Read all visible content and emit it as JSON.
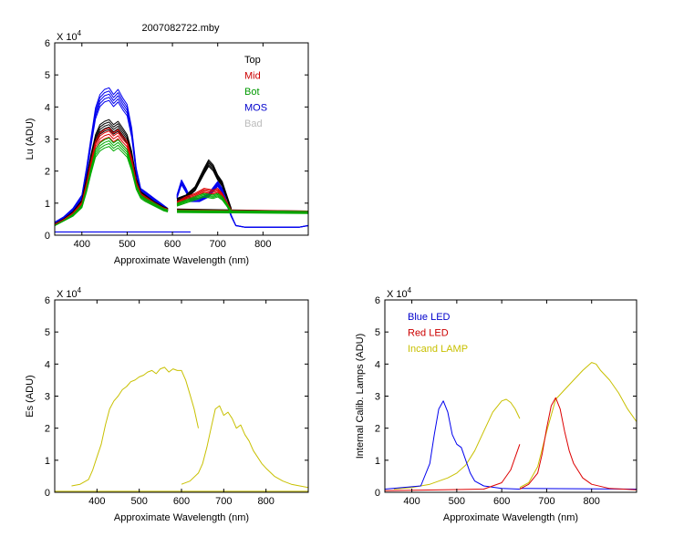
{
  "figure_title": "2007082722.mby",
  "chart_data": [
    {
      "id": "lu",
      "type": "line",
      "xlabel": "Approximate Wavelength (nm)",
      "ylabel": "Lu (ADU)",
      "xlim": [
        340,
        900
      ],
      "ylim": [
        0,
        6
      ],
      "y_multiplier": "X 10",
      "y_multiplier_exp": "4",
      "xticks": [
        400,
        500,
        600,
        700,
        800
      ],
      "yticks": [
        0,
        1,
        2,
        3,
        4,
        5,
        6
      ],
      "grid": false,
      "legend_position": "top-right",
      "legend": [
        {
          "name": "Top",
          "color": "#000000"
        },
        {
          "name": "Mid",
          "color": "#cc0000"
        },
        {
          "name": "Bot",
          "color": "#009900"
        },
        {
          "name": "MOS",
          "color": "#0000cc"
        },
        {
          "name": "Bad",
          "color": "#bbbbbb"
        }
      ],
      "series": [
        {
          "name": "MOS",
          "color": "#0000ee",
          "repeats": 5,
          "segments": [
            {
              "x": [
                340,
                360,
                380,
                400,
                410,
                420,
                430,
                440,
                450,
                460,
                470,
                480,
                490,
                500,
                510,
                520,
                530,
                540,
                560,
                580,
                590
              ],
              "y": [
                0.4,
                0.55,
                0.8,
                1.2,
                2.0,
                2.9,
                3.8,
                4.2,
                4.35,
                4.4,
                4.2,
                4.35,
                4.1,
                3.9,
                3.2,
                2.0,
                1.4,
                1.3,
                1.1,
                0.9,
                0.8
              ]
            },
            {
              "x": [
                610,
                620,
                630,
                640,
                660,
                680,
                700,
                710,
                720,
                730,
                740,
                760,
                800,
                840,
                880,
                900
              ],
              "y": [
                1.2,
                1.65,
                1.4,
                1.1,
                1.1,
                1.25,
                1.6,
                1.4,
                1.0,
                0.6,
                0.3,
                0.25,
                0.25,
                0.25,
                0.25,
                0.3
              ]
            },
            {
              "x": [
                340,
                640
              ],
              "y": [
                0.1,
                0.1
              ]
            }
          ]
        },
        {
          "name": "Top",
          "color": "#000000",
          "repeats": 5,
          "segments": [
            {
              "x": [
                340,
                360,
                380,
                400,
                410,
                420,
                430,
                440,
                450,
                460,
                470,
                480,
                490,
                500,
                510,
                520,
                530,
                540,
                560,
                580,
                590
              ],
              "y": [
                0.35,
                0.5,
                0.7,
                1.05,
                1.7,
                2.4,
                3.0,
                3.3,
                3.4,
                3.45,
                3.3,
                3.4,
                3.2,
                3.0,
                2.5,
                1.7,
                1.3,
                1.2,
                1.0,
                0.85,
                0.8
              ]
            },
            {
              "x": [
                610,
                630,
                650,
                670,
                680,
                690,
                700,
                710,
                720,
                730
              ],
              "y": [
                1.1,
                1.2,
                1.45,
                2.0,
                2.25,
                2.1,
                1.8,
                1.6,
                1.2,
                0.8
              ]
            },
            {
              "x": [
                610,
                900
              ],
              "y": [
                0.78,
                0.72
              ]
            }
          ]
        },
        {
          "name": "Mid",
          "color": "#dd0000",
          "repeats": 4,
          "segments": [
            {
              "x": [
                340,
                360,
                380,
                400,
                410,
                420,
                430,
                440,
                450,
                460,
                470,
                480,
                490,
                500,
                510,
                520,
                530,
                540,
                560,
                580,
                590
              ],
              "y": [
                0.33,
                0.48,
                0.66,
                0.98,
                1.55,
                2.2,
                2.8,
                3.05,
                3.15,
                3.2,
                3.05,
                3.15,
                2.95,
                2.8,
                2.3,
                1.6,
                1.25,
                1.15,
                0.97,
                0.82,
                0.78
              ]
            },
            {
              "x": [
                610,
                630,
                650,
                670,
                690,
                700,
                710,
                720,
                730
              ],
              "y": [
                1.0,
                1.15,
                1.25,
                1.4,
                1.35,
                1.4,
                1.25,
                1.0,
                0.75
              ]
            },
            {
              "x": [
                610,
                900
              ],
              "y": [
                0.76,
                0.72
              ]
            }
          ]
        },
        {
          "name": "Bot",
          "color": "#00aa00",
          "repeats": 4,
          "segments": [
            {
              "x": [
                340,
                360,
                380,
                400,
                410,
                420,
                430,
                440,
                450,
                460,
                470,
                480,
                490,
                500,
                510,
                520,
                530,
                540,
                560,
                580,
                590
              ],
              "y": [
                0.3,
                0.45,
                0.62,
                0.9,
                1.4,
                2.0,
                2.55,
                2.75,
                2.85,
                2.9,
                2.75,
                2.85,
                2.7,
                2.55,
                2.1,
                1.5,
                1.2,
                1.1,
                0.95,
                0.8,
                0.76
              ]
            },
            {
              "x": [
                610,
                630,
                650,
                670,
                690,
                700,
                710,
                720,
                730
              ],
              "y": [
                0.95,
                1.05,
                1.15,
                1.25,
                1.2,
                1.25,
                1.15,
                0.95,
                0.72
              ]
            },
            {
              "x": [
                610,
                900
              ],
              "y": [
                0.74,
                0.71
              ]
            }
          ]
        }
      ]
    },
    {
      "id": "es",
      "type": "line",
      "xlabel": "Approximate Wavelength (nm)",
      "ylabel": "Es (ADU)",
      "xlim": [
        300,
        900
      ],
      "ylim": [
        0,
        6
      ],
      "y_multiplier": "X 10",
      "y_multiplier_exp": "4",
      "xticks": [
        400,
        500,
        600,
        700,
        800
      ],
      "yticks": [
        0,
        1,
        2,
        3,
        4,
        5,
        6
      ],
      "grid": false,
      "series": [
        {
          "name": "",
          "color": "#c8c000",
          "repeats": 1,
          "segments": [
            {
              "x": [
                340,
                360,
                380,
                390,
                400,
                410,
                420,
                430,
                440,
                450,
                460,
                470,
                480,
                490,
                500,
                510,
                520,
                530,
                540,
                550,
                560,
                570,
                580,
                590,
                600,
                610,
                620,
                630,
                640
              ],
              "y": [
                0.2,
                0.25,
                0.4,
                0.7,
                1.1,
                1.5,
                2.1,
                2.6,
                2.85,
                3.0,
                3.2,
                3.3,
                3.45,
                3.5,
                3.6,
                3.65,
                3.75,
                3.8,
                3.7,
                3.85,
                3.9,
                3.75,
                3.85,
                3.8,
                3.8,
                3.5,
                3.05,
                2.6,
                2.0
              ]
            },
            {
              "x": [
                600,
                620,
                640,
                650,
                660,
                670,
                680,
                690,
                700,
                710,
                720,
                730,
                740,
                750,
                760,
                770,
                780,
                790,
                800,
                820,
                840,
                860,
                880,
                900
              ],
              "y": [
                0.25,
                0.35,
                0.6,
                0.9,
                1.4,
                2.0,
                2.6,
                2.7,
                2.4,
                2.5,
                2.3,
                2.0,
                2.1,
                1.8,
                1.6,
                1.3,
                1.1,
                0.9,
                0.75,
                0.5,
                0.35,
                0.25,
                0.2,
                0.15
              ]
            },
            {
              "x": [
                300,
                900
              ],
              "y": [
                0.03,
                0.03
              ]
            }
          ]
        }
      ]
    },
    {
      "id": "lamps",
      "type": "line",
      "xlabel": "Approximate Wavelength (nm)",
      "ylabel": "Internal Calib. Lamps (ADU)",
      "xlim": [
        340,
        900
      ],
      "ylim": [
        0,
        6
      ],
      "y_multiplier": "X 10",
      "y_multiplier_exp": "4",
      "xticks": [
        400,
        500,
        600,
        700,
        800
      ],
      "yticks": [
        0,
        1,
        2,
        3,
        4,
        5,
        6
      ],
      "grid": false,
      "legend_position": "top-left",
      "legend": [
        {
          "name": "Blue LED",
          "color": "#0000cc"
        },
        {
          "name": "Red LED",
          "color": "#cc0000"
        },
        {
          "name": "Incand LAMP",
          "color": "#c8c000"
        }
      ],
      "series": [
        {
          "name": "Incand LAMP",
          "color": "#c8c000",
          "repeats": 1,
          "segments": [
            {
              "x": [
                360,
                400,
                440,
                480,
                500,
                520,
                540,
                560,
                580,
                600,
                610,
                620,
                630,
                640
              ],
              "y": [
                0.1,
                0.15,
                0.25,
                0.45,
                0.6,
                0.85,
                1.3,
                1.9,
                2.5,
                2.85,
                2.9,
                2.8,
                2.6,
                2.3
              ]
            },
            {
              "x": [
                640,
                660,
                680,
                700,
                720,
                740,
                760,
                780,
                800,
                810,
                820,
                840,
                860,
                880,
                900
              ],
              "y": [
                0.15,
                0.3,
                0.8,
                1.9,
                2.9,
                3.2,
                3.5,
                3.8,
                4.05,
                4.0,
                3.8,
                3.5,
                3.1,
                2.6,
                2.2
              ]
            }
          ]
        },
        {
          "name": "Blue LED",
          "color": "#0000ee",
          "repeats": 1,
          "segments": [
            {
              "x": [
                340,
                420,
                440,
                450,
                460,
                470,
                480,
                490,
                500,
                510,
                520,
                530,
                540,
                560,
                600,
                640
              ],
              "y": [
                0.1,
                0.2,
                0.9,
                1.8,
                2.6,
                2.85,
                2.5,
                1.8,
                1.5,
                1.4,
                1.0,
                0.6,
                0.35,
                0.2,
                0.12,
                0.1
              ]
            },
            {
              "x": [
                640,
                900
              ],
              "y": [
                0.12,
                0.1
              ]
            }
          ]
        },
        {
          "name": "Red LED",
          "color": "#dd0000",
          "repeats": 1,
          "segments": [
            {
              "x": [
                340,
                560,
                600,
                620,
                640
              ],
              "y": [
                0.05,
                0.1,
                0.3,
                0.7,
                1.5
              ]
            },
            {
              "x": [
                640,
                660,
                680,
                690,
                700,
                710,
                720,
                730,
                740,
                750,
                760,
                780,
                800,
                840,
                900
              ],
              "y": [
                0.1,
                0.25,
                0.6,
                1.2,
                2.0,
                2.7,
                2.95,
                2.6,
                1.9,
                1.3,
                0.9,
                0.45,
                0.25,
                0.12,
                0.08
              ]
            }
          ]
        }
      ]
    }
  ]
}
